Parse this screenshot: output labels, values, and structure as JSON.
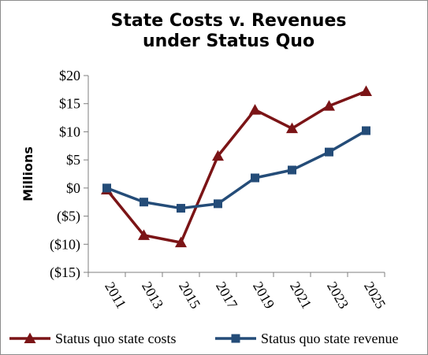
{
  "chart_data": {
    "type": "line",
    "title": [
      "State Costs v. Revenues",
      "under Status Quo"
    ],
    "ylabel": "Millions",
    "xlabel": "",
    "categories": [
      "2011",
      "2013",
      "2015",
      "2017",
      "2019",
      "2021",
      "2023",
      "2025"
    ],
    "ylim": [
      -15,
      20
    ],
    "yticks": [
      20,
      15,
      10,
      5,
      0,
      -5,
      -10,
      -15
    ],
    "ytick_labels": [
      "$20",
      "$15",
      "$10",
      "$5",
      "$0",
      "($5)",
      "($10)",
      "($15)"
    ],
    "grid": false,
    "legend_position": "bottom",
    "series": [
      {
        "name": "Status quo state costs",
        "values": [
          -0.3,
          -8.4,
          -9.7,
          5.7,
          13.9,
          10.6,
          14.6,
          17.2
        ],
        "color": "#7b1416",
        "marker": "triangle"
      },
      {
        "name": "Status quo state revenue",
        "values": [
          0.0,
          -2.5,
          -3.6,
          -2.8,
          1.8,
          3.2,
          6.4,
          10.2
        ],
        "color": "#244c78",
        "marker": "square"
      }
    ]
  }
}
